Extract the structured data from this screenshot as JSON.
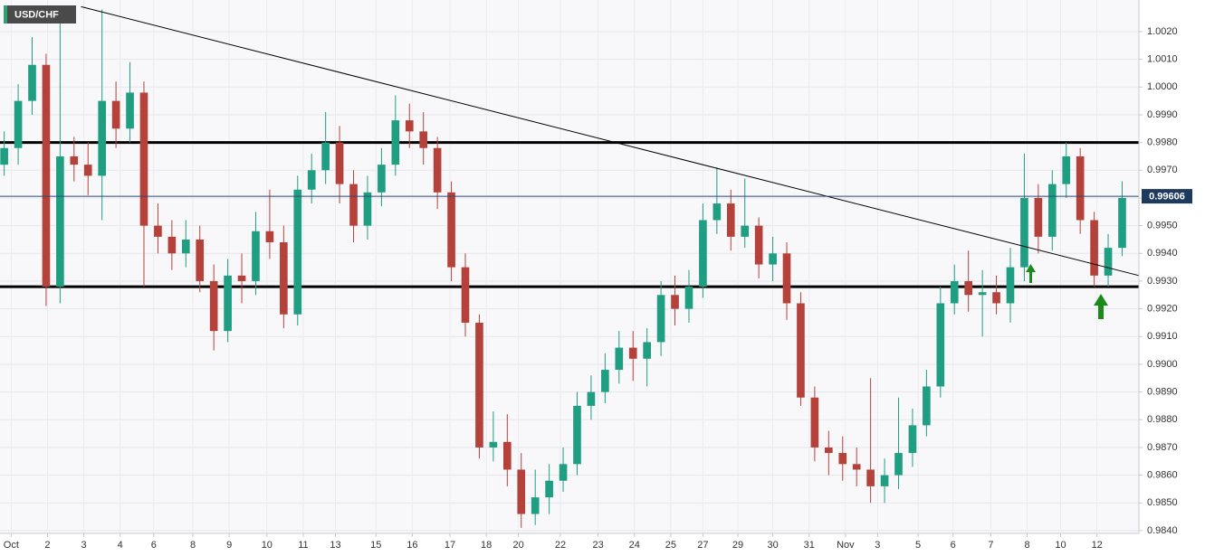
{
  "chart_data": {
    "type": "candlestick",
    "title": "USD/CHF",
    "up_color": "#1f9e82",
    "down_color": "#b5423a",
    "open": [
      0.9972,
      0.9978,
      0.9995,
      1.0008,
      0.9928,
      0.9975,
      0.9972,
      0.9968,
      0.9995,
      0.9985,
      0.9998,
      0.995,
      0.9946,
      0.994,
      0.9945,
      0.993,
      0.9912,
      0.9932,
      0.993,
      0.9948,
      0.9944,
      0.9918,
      0.9963,
      0.997,
      0.998,
      0.9965,
      0.995,
      0.9962,
      0.9972,
      0.9988,
      0.9984,
      0.9978,
      0.9962,
      0.9935,
      0.9915,
      0.987,
      0.9872,
      0.9862,
      0.9846,
      0.9852,
      0.9858,
      0.9864,
      0.9885,
      0.989,
      0.9898,
      0.9906,
      0.9902,
      0.9908,
      0.9925,
      0.992,
      0.9928,
      0.9952,
      0.9958,
      0.9946,
      0.995,
      0.9936,
      0.994,
      0.9922,
      0.9888,
      0.987,
      0.9868,
      0.9864,
      0.9862,
      0.9856,
      0.986,
      0.9868,
      0.9878,
      0.9892,
      0.9922,
      0.993,
      0.9925,
      0.9926,
      0.9922,
      0.9935,
      0.996,
      0.9946,
      0.9965,
      0.9975,
      0.9952,
      0.9932,
      0.9942
    ],
    "high": [
      0.9984,
      1.0001,
      1.0018,
      1.0012,
      1.0027,
      0.9982,
      0.998,
      1.0028,
      1.0002,
      1.0009,
      1.0002,
      0.9958,
      0.9952,
      0.9952,
      0.995,
      0.9936,
      0.9938,
      0.994,
      0.9955,
      0.9963,
      0.995,
      0.9968,
      0.9976,
      0.9991,
      0.9986,
      0.997,
      0.9968,
      0.9978,
      0.9997,
      0.9994,
      0.9991,
      0.9982,
      0.9966,
      0.994,
      0.9918,
      0.9883,
      0.9882,
      0.9868,
      0.9862,
      0.9864,
      0.987,
      0.989,
      0.9896,
      0.9904,
      0.9912,
      0.9912,
      0.9913,
      0.993,
      0.9932,
      0.9934,
      0.9958,
      0.9971,
      0.9963,
      0.9967,
      0.9953,
      0.9946,
      0.9944,
      0.9926,
      0.9892,
      0.9876,
      0.9874,
      0.987,
      0.9895,
      0.9866,
      0.9888,
      0.9884,
      0.9898,
      0.9928,
      0.9936,
      0.9941,
      0.9934,
      0.9932,
      0.9942,
      0.9976,
      0.9965,
      0.997,
      0.998,
      0.9978,
      0.9955,
      0.9947,
      0.9966
    ],
    "low": [
      0.9968,
      0.9972,
      0.999,
      0.9921,
      0.9922,
      0.9966,
      0.9961,
      0.9952,
      0.9978,
      0.998,
      0.9928,
      0.994,
      0.9934,
      0.9935,
      0.9926,
      0.9905,
      0.9908,
      0.9922,
      0.9925,
      0.9938,
      0.9913,
      0.9914,
      0.9958,
      0.9965,
      0.9958,
      0.9944,
      0.9945,
      0.9957,
      0.9968,
      0.9978,
      0.9972,
      0.9956,
      0.993,
      0.991,
      0.9866,
      0.9865,
      0.9856,
      0.9841,
      0.9842,
      0.9846,
      0.9854,
      0.986,
      0.988,
      0.9886,
      0.9893,
      0.9894,
      0.9892,
      0.9903,
      0.9914,
      0.9915,
      0.9924,
      0.9947,
      0.9941,
      0.9942,
      0.9931,
      0.993,
      0.9916,
      0.9885,
      0.9865,
      0.986,
      0.9858,
      0.9856,
      0.985,
      0.985,
      0.9855,
      0.9863,
      0.9874,
      0.9888,
      0.9918,
      0.9919,
      0.991,
      0.9918,
      0.9915,
      0.993,
      0.994,
      0.9941,
      0.996,
      0.9947,
      0.9928,
      0.9928,
      0.9939
    ],
    "close": [
      0.9978,
      0.9995,
      1.0008,
      0.9928,
      0.9975,
      0.9972,
      0.9968,
      0.9995,
      0.9985,
      0.9998,
      0.995,
      0.9946,
      0.994,
      0.9945,
      0.993,
      0.9912,
      0.9932,
      0.993,
      0.9948,
      0.9944,
      0.9918,
      0.9963,
      0.997,
      0.998,
      0.9965,
      0.995,
      0.9962,
      0.9972,
      0.9988,
      0.9984,
      0.9978,
      0.9962,
      0.9935,
      0.9915,
      0.987,
      0.9872,
      0.9862,
      0.9846,
      0.9852,
      0.9858,
      0.9864,
      0.9885,
      0.989,
      0.9898,
      0.9906,
      0.9902,
      0.9908,
      0.9925,
      0.992,
      0.9928,
      0.9952,
      0.9958,
      0.9946,
      0.995,
      0.9936,
      0.994,
      0.9922,
      0.9888,
      0.987,
      0.9868,
      0.9864,
      0.9862,
      0.9856,
      0.986,
      0.9868,
      0.9878,
      0.9892,
      0.9922,
      0.993,
      0.9925,
      0.9926,
      0.9922,
      0.9935,
      0.996,
      0.9946,
      0.9965,
      0.9975,
      0.9952,
      0.9932,
      0.9942,
      0.996
    ],
    "xlim": [
      -0.3,
      81.2
    ],
    "xticks": [
      {
        "value": 0.5,
        "label": "Oct"
      },
      {
        "value": 3.1,
        "label": "2"
      },
      {
        "value": 5.7,
        "label": "3"
      },
      {
        "value": 8.3,
        "label": "4"
      },
      {
        "value": 10.7,
        "label": "6"
      },
      {
        "value": 13.5,
        "label": "8"
      },
      {
        "value": 16.1,
        "label": "9"
      },
      {
        "value": 18.8,
        "label": "10"
      },
      {
        "value": 21.4,
        "label": "11"
      },
      {
        "value": 23.7,
        "label": "13"
      },
      {
        "value": 26.6,
        "label": "15"
      },
      {
        "value": 29.2,
        "label": "16"
      },
      {
        "value": 31.9,
        "label": "17"
      },
      {
        "value": 34.5,
        "label": "18"
      },
      {
        "value": 36.8,
        "label": "20"
      },
      {
        "value": 39.8,
        "label": "22"
      },
      {
        "value": 42.5,
        "label": "23"
      },
      {
        "value": 45.1,
        "label": "24"
      },
      {
        "value": 47.7,
        "label": "25"
      },
      {
        "value": 50.0,
        "label": "27"
      },
      {
        "value": 52.5,
        "label": "29"
      },
      {
        "value": 55.0,
        "label": "30"
      },
      {
        "value": 57.6,
        "label": "31"
      },
      {
        "value": 60.2,
        "label": "Nov"
      },
      {
        "value": 62.5,
        "label": "3"
      },
      {
        "value": 65.4,
        "label": "5"
      },
      {
        "value": 67.9,
        "label": "6"
      },
      {
        "value": 70.6,
        "label": "7"
      },
      {
        "value": 73.2,
        "label": "8"
      },
      {
        "value": 75.6,
        "label": "10"
      },
      {
        "value": 78.2,
        "label": "12"
      }
    ],
    "ylim": [
      0.9839,
      1.00314
    ],
    "yticks": [
      {
        "value": 0.984,
        "label": "0.9840"
      },
      {
        "value": 0.985,
        "label": "0.9850"
      },
      {
        "value": 0.986,
        "label": "0.9860"
      },
      {
        "value": 0.987,
        "label": "0.9870"
      },
      {
        "value": 0.988,
        "label": "0.9880"
      },
      {
        "value": 0.989,
        "label": "0.9890"
      },
      {
        "value": 0.99,
        "label": "0.9900"
      },
      {
        "value": 0.991,
        "label": "0.9910"
      },
      {
        "value": 0.992,
        "label": "0.9920"
      },
      {
        "value": 0.993,
        "label": "0.9930"
      },
      {
        "value": 0.994,
        "label": "0.9940"
      },
      {
        "value": 0.995,
        "label": "0.9950"
      },
      {
        "value": 0.996,
        "label": "0.9960"
      },
      {
        "value": 0.997,
        "label": "0.9970"
      },
      {
        "value": 0.998,
        "label": "0.9980"
      },
      {
        "value": 0.999,
        "label": "0.9990"
      },
      {
        "value": 1.0,
        "label": "1.0000"
      },
      {
        "value": 1.001,
        "label": "1.0010"
      },
      {
        "value": 1.002,
        "label": "1.0020"
      }
    ],
    "grid": true,
    "levels": [
      0.998,
      0.9928
    ],
    "trendline": {
      "x": [
        5.5,
        81.2
      ],
      "y": [
        1.0029,
        0.9932
      ]
    },
    "last_price": 0.99606
  }
}
